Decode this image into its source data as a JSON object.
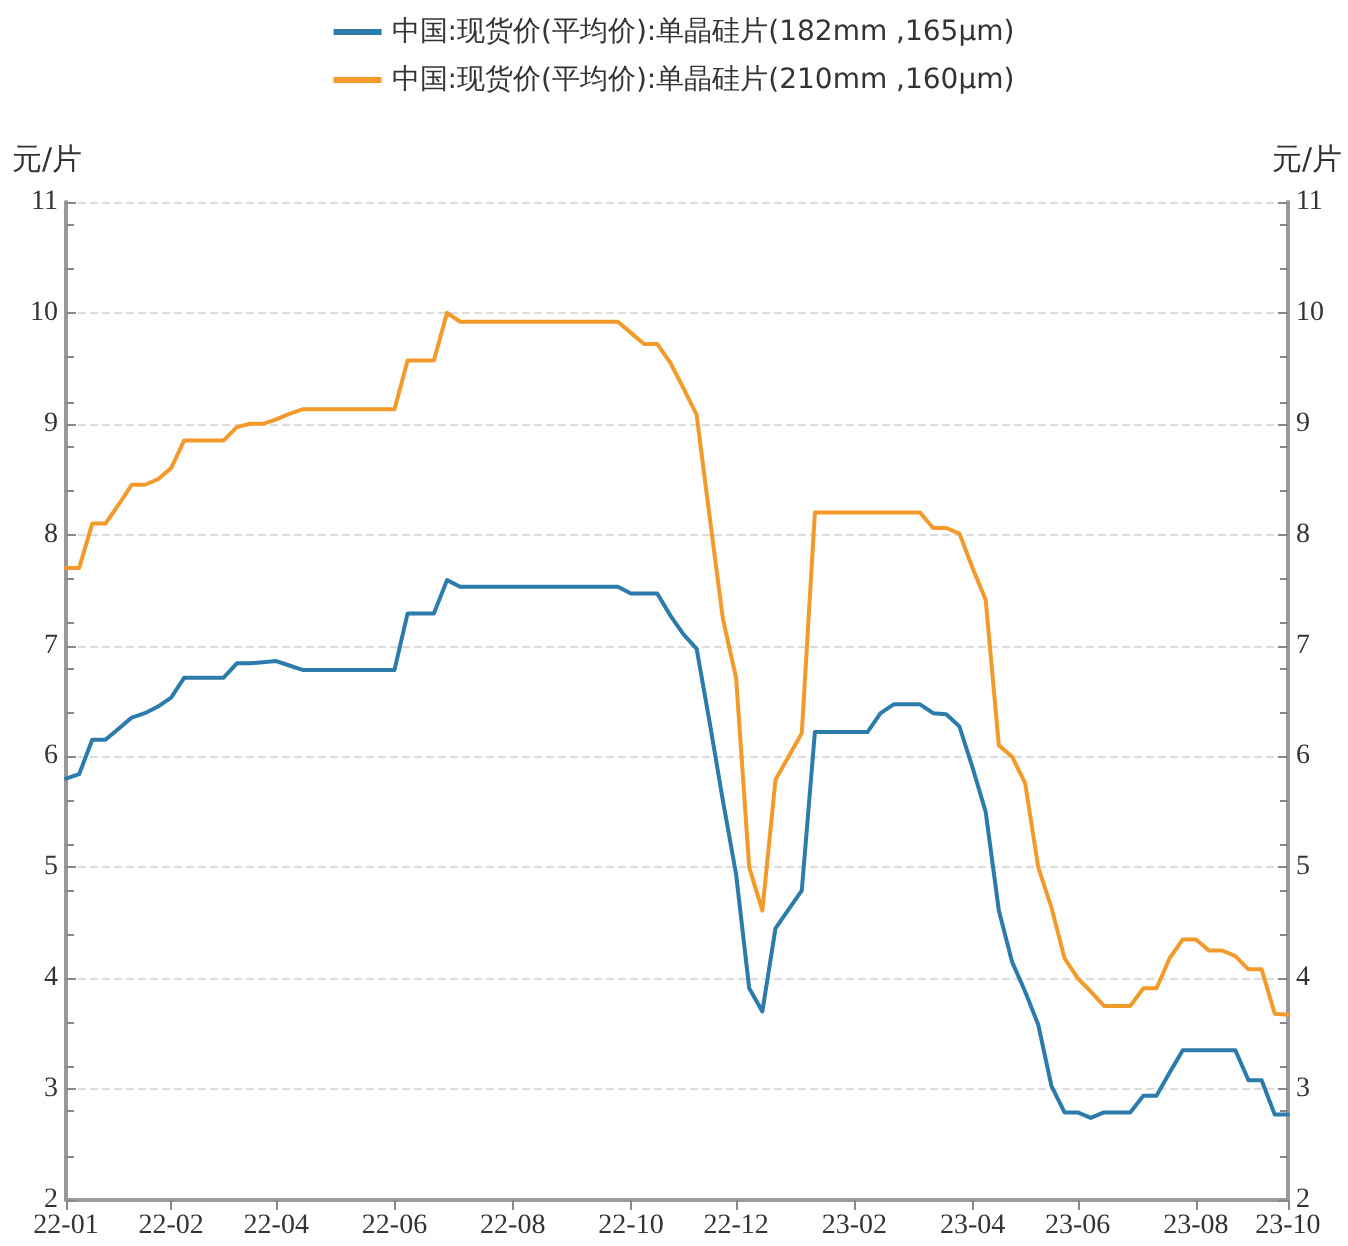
{
  "chart_data": {
    "type": "line",
    "categories": [
      "22-01",
      null,
      null,
      null,
      null,
      null,
      null,
      null,
      "22-02",
      null,
      null,
      null,
      null,
      null,
      null,
      null,
      "22-04",
      null,
      null,
      null,
      null,
      null,
      null,
      null,
      null,
      "22-06",
      null,
      null,
      null,
      null,
      null,
      null,
      null,
      null,
      "22-08",
      null,
      null,
      null,
      null,
      null,
      null,
      null,
      null,
      "22-10",
      null,
      null,
      null,
      null,
      null,
      null,
      null,
      "22-12",
      null,
      null,
      null,
      null,
      null,
      null,
      null,
      null,
      "23-02",
      null,
      null,
      null,
      null,
      null,
      null,
      null,
      null,
      "23-04",
      null,
      null,
      null,
      null,
      null,
      null,
      null,
      "23-06",
      null,
      null,
      null,
      null,
      null,
      null,
      null,
      null,
      "23-08",
      null,
      null,
      null,
      null,
      null,
      null,
      "23-10"
    ],
    "series": [
      {
        "name": "中国:现货价(平均价):单晶硅片(182mm ,165μm)",
        "color": "#2b7bab",
        "values": [
          5.8,
          5.84,
          6.15,
          6.15,
          6.25,
          6.35,
          6.39,
          6.45,
          6.53,
          6.71,
          6.71,
          6.71,
          6.71,
          6.84,
          6.84,
          6.85,
          6.86,
          6.82,
          6.78,
          6.78,
          6.78,
          6.78,
          6.78,
          6.78,
          6.78,
          6.78,
          7.29,
          7.29,
          7.29,
          7.59,
          7.53,
          7.53,
          7.53,
          7.53,
          7.53,
          7.53,
          7.53,
          7.53,
          7.53,
          7.53,
          7.53,
          7.53,
          7.53,
          7.47,
          7.47,
          7.47,
          7.27,
          7.1,
          6.97,
          6.3,
          5.6,
          4.94,
          3.91,
          3.7,
          4.45,
          4.62,
          4.79,
          6.22,
          6.22,
          6.22,
          6.22,
          6.22,
          6.39,
          6.47,
          6.47,
          6.47,
          6.39,
          6.38,
          6.27,
          5.9,
          5.5,
          4.61,
          4.15,
          3.88,
          3.58,
          3.03,
          2.79,
          2.79,
          2.74,
          2.79,
          2.79,
          2.79,
          2.94,
          2.94,
          3.15,
          3.35,
          3.35,
          3.35,
          3.35,
          3.35,
          3.08,
          3.08,
          2.77,
          2.77
        ]
      },
      {
        "name": "中国:现货价(平均价):单晶硅片(210mm ,160μm)",
        "color": "#f39a2b",
        "values": [
          7.7,
          7.7,
          8.1,
          8.1,
          8.27,
          8.45,
          8.45,
          8.5,
          8.6,
          8.85,
          8.85,
          8.85,
          8.85,
          8.97,
          9.0,
          9.0,
          9.04,
          9.09,
          9.13,
          9.13,
          9.13,
          9.13,
          9.13,
          9.13,
          9.13,
          9.13,
          9.57,
          9.57,
          9.57,
          10.0,
          9.92,
          9.92,
          9.92,
          9.92,
          9.92,
          9.92,
          9.92,
          9.92,
          9.92,
          9.92,
          9.92,
          9.92,
          9.92,
          9.82,
          9.72,
          9.72,
          9.55,
          9.32,
          9.08,
          8.15,
          7.24,
          6.71,
          5.0,
          4.61,
          5.79,
          6.0,
          6.21,
          8.2,
          8.2,
          8.2,
          8.2,
          8.2,
          8.2,
          8.2,
          8.2,
          8.2,
          8.06,
          8.06,
          8.01,
          7.7,
          7.41,
          6.1,
          6.0,
          5.76,
          5.0,
          4.64,
          4.18,
          4.0,
          3.88,
          3.75,
          3.75,
          3.75,
          3.91,
          3.91,
          4.18,
          4.35,
          4.35,
          4.25,
          4.25,
          4.2,
          4.08,
          4.08,
          3.68,
          3.67
        ]
      }
    ],
    "ylabel": "元/片",
    "y2label": "元/片",
    "ylim": [
      2,
      11
    ],
    "yticks": [
      2,
      3,
      4,
      5,
      6,
      7,
      8,
      9,
      10,
      11
    ],
    "y2lim": [
      2,
      11
    ],
    "y2ticks": [
      2,
      3,
      4,
      5,
      6,
      7,
      8,
      9,
      10,
      11
    ],
    "grid": "y",
    "legend": "top",
    "marker": "none",
    "line_style": "solid"
  }
}
